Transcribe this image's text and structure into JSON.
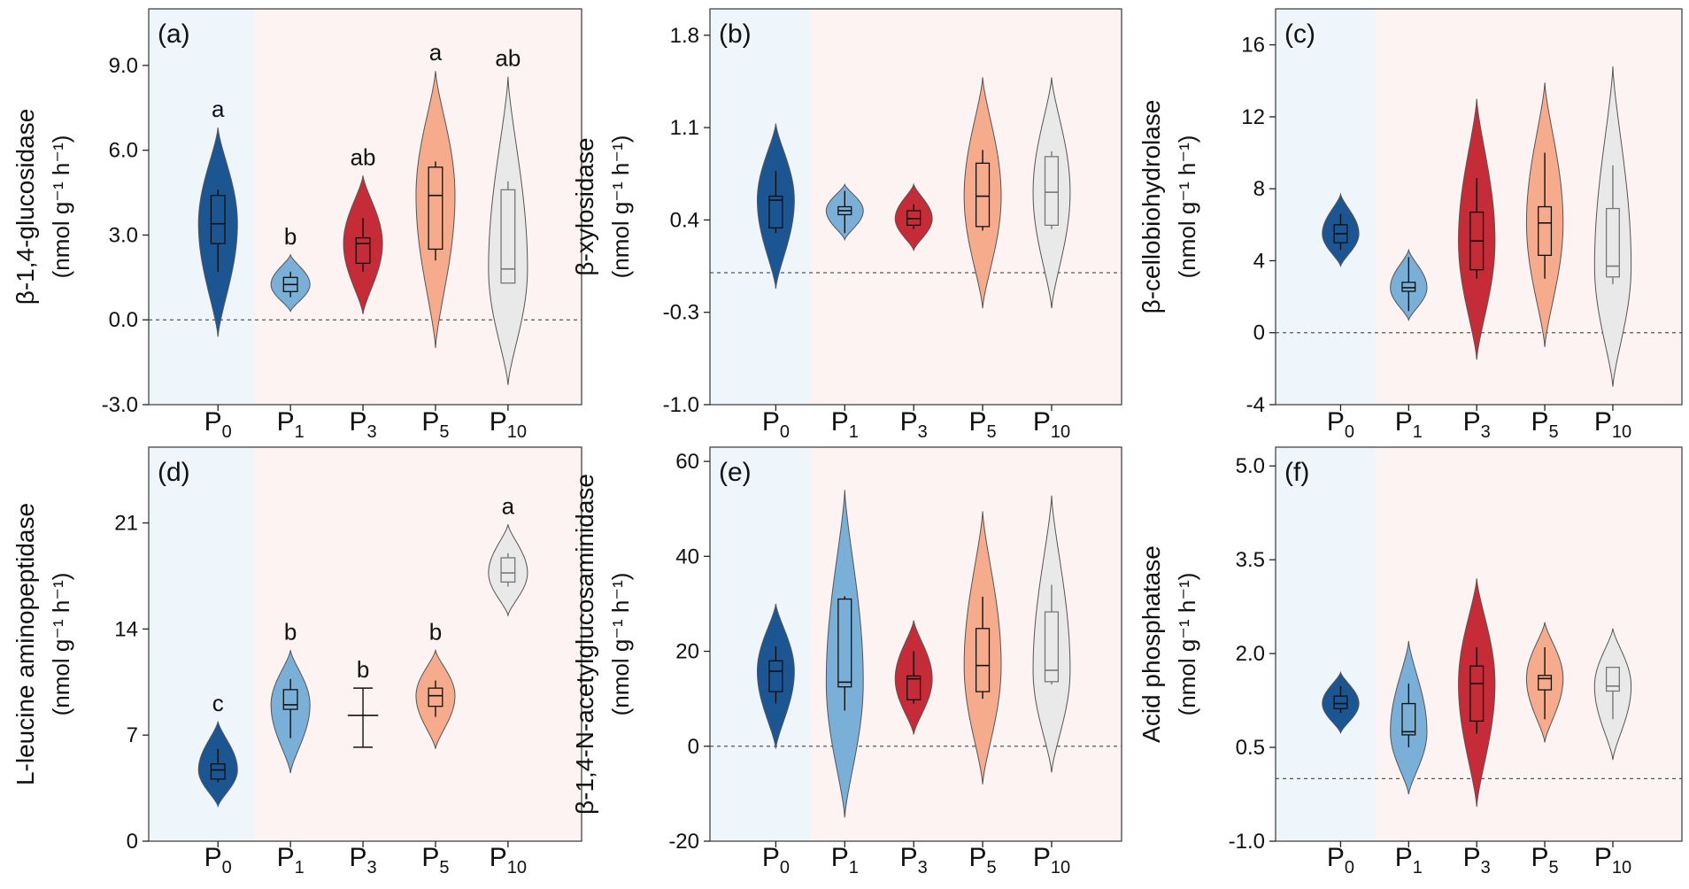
{
  "categories": [
    "P0",
    "P1",
    "P3",
    "P5",
    "P10"
  ],
  "tick_label_main": "P",
  "tick_label_subs": [
    "0",
    "1",
    "3",
    "5",
    "10"
  ],
  "colors": {
    "fills": [
      "#1b5592",
      "#7aafd7",
      "#c62c37",
      "#f5ab8c",
      "#e9e9ea"
    ],
    "box_stroke": [
      "#111111",
      "#111111",
      "#111111",
      "#111111",
      "#777777"
    ],
    "control_bg": "#eef6fc",
    "treatment_bg": "#fdf3f3",
    "zero_line": "#555555"
  },
  "chart_data": [
    {
      "type": "violin",
      "panel": "(a)",
      "ylabel": "β-1,4-glucosidase",
      "ylabel_units": "(nmol g⁻¹ h⁻¹)",
      "ylim": [
        -3.0,
        11.0
      ],
      "yticks": [
        -3.0,
        0.0,
        3.0,
        6.0,
        9.0
      ],
      "ytick_labels": [
        "-3.0",
        "0.0",
        "3.0",
        "6.0",
        "9.0"
      ],
      "letters": [
        "a",
        "b",
        "ab",
        "a",
        "ab"
      ],
      "series": [
        {
          "name": "P0",
          "box": [
            2.7,
            3.4,
            4.4
          ],
          "whisker": [
            1.7,
            4.6
          ],
          "range": [
            -0.6,
            6.8
          ]
        },
        {
          "name": "P1",
          "box": [
            1.0,
            1.25,
            1.5
          ],
          "whisker": [
            0.8,
            1.7
          ],
          "range": [
            0.3,
            2.3
          ]
        },
        {
          "name": "P3",
          "box": [
            2.0,
            2.7,
            2.9
          ],
          "whisker": [
            1.7,
            3.6
          ],
          "range": [
            0.2,
            5.1
          ]
        },
        {
          "name": "P5",
          "box": [
            2.5,
            4.4,
            5.4
          ],
          "whisker": [
            2.1,
            5.6
          ],
          "range": [
            -1.0,
            8.8
          ]
        },
        {
          "name": "P10",
          "box": [
            1.3,
            1.8,
            4.6
          ],
          "whisker": [
            1.3,
            4.9
          ],
          "range": [
            -2.3,
            8.6
          ]
        }
      ]
    },
    {
      "type": "violin",
      "panel": "(b)",
      "ylabel": "β-xylosidase",
      "ylabel_units": "(nmol g⁻¹ h⁻¹)",
      "ylim": [
        -1.0,
        2.0
      ],
      "yticks": [
        -1.0,
        -0.3,
        0.4,
        1.1,
        1.8
      ],
      "ytick_labels": [
        "-1.0",
        "-0.3",
        "0.4",
        "1.1",
        "1.8"
      ],
      "letters": [],
      "series": [
        {
          "name": "P0",
          "box": [
            0.34,
            0.55,
            0.58
          ],
          "whisker": [
            0.3,
            0.77
          ],
          "range": [
            -0.12,
            1.13
          ]
        },
        {
          "name": "P1",
          "box": [
            0.44,
            0.47,
            0.5
          ],
          "whisker": [
            0.3,
            0.62
          ],
          "range": [
            0.25,
            0.67
          ]
        },
        {
          "name": "P3",
          "box": [
            0.36,
            0.41,
            0.47
          ],
          "whisker": [
            0.33,
            0.52
          ],
          "range": [
            0.17,
            0.67
          ]
        },
        {
          "name": "P5",
          "box": [
            0.35,
            0.58,
            0.83
          ],
          "whisker": [
            0.32,
            0.93
          ],
          "range": [
            -0.27,
            1.48
          ]
        },
        {
          "name": "P10",
          "box": [
            0.36,
            0.61,
            0.88
          ],
          "whisker": [
            0.33,
            0.92
          ],
          "range": [
            -0.27,
            1.48
          ]
        }
      ]
    },
    {
      "type": "violin",
      "panel": "(c)",
      "ylabel": "β-cellobiohydrolase",
      "ylabel_units": "(nmol g⁻¹ h⁻¹)",
      "ylim": [
        -4,
        18
      ],
      "yticks": [
        -4,
        0,
        4,
        8,
        12,
        16
      ],
      "ytick_labels": [
        "-4",
        "0",
        "4",
        "8",
        "12",
        "16"
      ],
      "letters": [],
      "series": [
        {
          "name": "P0",
          "box": [
            5.0,
            5.5,
            6.0
          ],
          "whisker": [
            4.6,
            6.6
          ],
          "range": [
            3.7,
            7.7
          ]
        },
        {
          "name": "P1",
          "box": [
            2.3,
            2.5,
            2.8
          ],
          "whisker": [
            1.2,
            4.2
          ],
          "range": [
            0.7,
            4.6
          ]
        },
        {
          "name": "P3",
          "box": [
            3.5,
            5.1,
            6.7
          ],
          "whisker": [
            3.0,
            8.6
          ],
          "range": [
            -1.5,
            13.0
          ]
        },
        {
          "name": "P5",
          "box": [
            4.3,
            6.1,
            7.0
          ],
          "whisker": [
            3.0,
            10.0
          ],
          "range": [
            -0.8,
            13.9
          ]
        },
        {
          "name": "P10",
          "box": [
            3.1,
            3.7,
            6.9
          ],
          "whisker": [
            2.7,
            9.3
          ],
          "range": [
            -3.0,
            14.8
          ]
        }
      ]
    },
    {
      "type": "violin",
      "panel": "(d)",
      "ylabel": "L-leucine aminopeptidase",
      "ylabel_units": "(nmol g⁻¹ h⁻¹)",
      "ylim": [
        0,
        26
      ],
      "yticks": [
        0,
        7,
        14,
        21
      ],
      "ytick_labels": [
        "0",
        "7",
        "14",
        "21"
      ],
      "letters": [
        "c",
        "b",
        "b",
        "b",
        "a"
      ],
      "series": [
        {
          "name": "P0",
          "box": [
            4.1,
            4.7,
            5.1
          ],
          "whisker": [
            3.9,
            6.1
          ],
          "range": [
            2.3,
            7.9
          ]
        },
        {
          "name": "P1",
          "box": [
            8.7,
            9.0,
            10.0
          ],
          "whisker": [
            6.8,
            10.7
          ],
          "range": [
            4.5,
            12.6
          ]
        },
        {
          "name": "P3",
          "box": [
            8.3,
            8.3,
            8.3
          ],
          "whisker": [
            6.2,
            10.1
          ],
          "range": [
            6.2,
            10.1
          ]
        },
        {
          "name": "P5",
          "box": [
            8.9,
            9.6,
            10.1
          ],
          "whisker": [
            8.2,
            10.6
          ],
          "range": [
            6.1,
            12.6
          ]
        },
        {
          "name": "P10",
          "box": [
            17.1,
            17.7,
            18.7
          ],
          "whisker": [
            16.8,
            19.0
          ],
          "range": [
            14.9,
            20.9
          ]
        }
      ]
    },
    {
      "type": "violin",
      "panel": "(e)",
      "ylabel": "β-1,4-N-acetylglucosaminidase",
      "ylabel_units": "(nmol g⁻¹ h⁻¹)",
      "ylim": [
        -20,
        63
      ],
      "yticks": [
        -20,
        0,
        20,
        40,
        60
      ],
      "ytick_labels": [
        "-20",
        "0",
        "20",
        "40",
        "60"
      ],
      "letters": [],
      "series": [
        {
          "name": "P0",
          "box": [
            11.5,
            15.8,
            18.0
          ],
          "whisker": [
            9.0,
            21.0
          ],
          "range": [
            -0.5,
            30.0
          ]
        },
        {
          "name": "P1",
          "box": [
            12.5,
            13.5,
            31.0
          ],
          "whisker": [
            7.5,
            31.6
          ],
          "range": [
            -15.0,
            54.0
          ]
        },
        {
          "name": "P3",
          "box": [
            9.8,
            14.2,
            14.8
          ],
          "whisker": [
            9.0,
            20.0
          ],
          "range": [
            2.5,
            26.5
          ]
        },
        {
          "name": "P5",
          "box": [
            11.5,
            17.0,
            24.8
          ],
          "whisker": [
            10.0,
            31.5
          ],
          "range": [
            -8.0,
            49.5
          ]
        },
        {
          "name": "P10",
          "box": [
            13.6,
            16.0,
            28.3
          ],
          "whisker": [
            13.0,
            34.0
          ],
          "range": [
            -5.5,
            52.8
          ]
        }
      ]
    },
    {
      "type": "violin",
      "panel": "(f)",
      "ylabel": "Acid phosphatase",
      "ylabel_units": "(nmol g⁻¹ h⁻¹)",
      "ylim": [
        -1.0,
        5.3
      ],
      "yticks": [
        -1.0,
        0.5,
        2.0,
        3.5,
        5.0
      ],
      "ytick_labels": [
        "-1.0",
        "0.5",
        "2.0",
        "3.5",
        "5.0"
      ],
      "letters": [],
      "series": [
        {
          "name": "P0",
          "box": [
            1.12,
            1.2,
            1.32
          ],
          "whisker": [
            1.05,
            1.48
          ],
          "range": [
            0.73,
            1.7
          ]
        },
        {
          "name": "P1",
          "box": [
            0.7,
            0.75,
            1.2
          ],
          "whisker": [
            0.5,
            1.52
          ],
          "range": [
            -0.25,
            2.2
          ]
        },
        {
          "name": "P3",
          "box": [
            0.92,
            1.52,
            1.8
          ],
          "whisker": [
            0.72,
            2.1
          ],
          "range": [
            -0.45,
            3.2
          ]
        },
        {
          "name": "P5",
          "box": [
            1.42,
            1.6,
            1.65
          ],
          "whisker": [
            0.95,
            2.1
          ],
          "range": [
            0.58,
            2.5
          ]
        },
        {
          "name": "P10",
          "box": [
            1.4,
            1.48,
            1.78
          ],
          "whisker": [
            0.95,
            1.78
          ],
          "range": [
            0.3,
            2.4
          ]
        }
      ]
    }
  ]
}
